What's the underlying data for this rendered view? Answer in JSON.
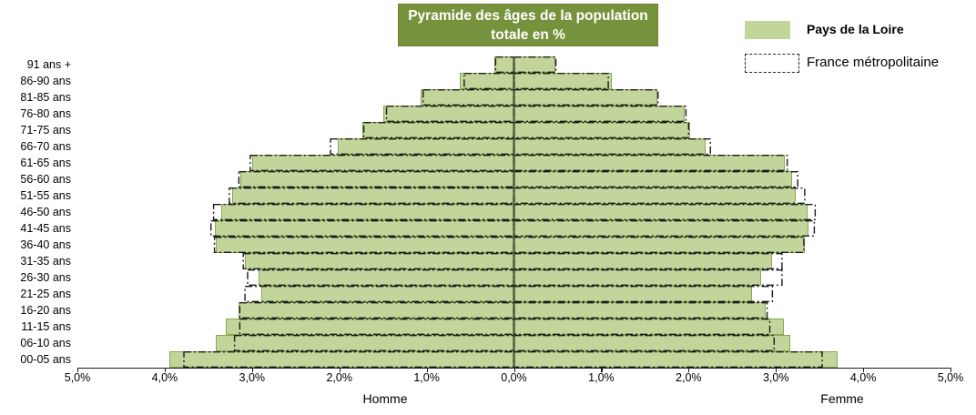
{
  "chart_data": {
    "type": "bar",
    "variant": "population-pyramid",
    "title": "Pyramide des âges de la population totale en %",
    "xlabel_left": "Homme",
    "xlabel_right": "Femme",
    "xlim": [
      -5,
      5
    ],
    "grid": false,
    "legend_position": "top-right",
    "x_tick_labels": [
      "5,0%",
      "4,0%",
      "3,0%",
      "2,0%",
      "1,0%",
      "0,0%",
      "1,0%",
      "2,0%",
      "3,0%",
      "4,0%",
      "5,0%"
    ],
    "x_tick_values": [
      -5,
      -4,
      -3,
      -2,
      -1,
      0,
      1,
      2,
      3,
      4,
      5
    ],
    "categories_top_to_bottom": [
      "91 ans +",
      "86-90 ans",
      "81-85 ans",
      "76-80 ans",
      "71-75 ans",
      "66-70 ans",
      "61-65 ans",
      "56-60 ans",
      "51-55 ans",
      "46-50 ans",
      "41-45 ans",
      "36-40 ans",
      "31-35 ans",
      "26-30 ans",
      "21-25 ans",
      "16-20 ans",
      "11-15 ans",
      "06-10 ans",
      "00-05 ans"
    ],
    "series": [
      {
        "name": "Pays de la Loire",
        "style": "filled",
        "fill": "#C2D69B",
        "border": "#8CA554",
        "homme": [
          0.22,
          0.62,
          1.07,
          1.5,
          1.74,
          2.02,
          3.0,
          3.13,
          3.23,
          3.35,
          3.43,
          3.41,
          3.08,
          2.93,
          2.89,
          3.15,
          3.3,
          3.42,
          3.95
        ],
        "femme": [
          0.47,
          1.12,
          1.64,
          1.95,
          2.02,
          2.19,
          3.1,
          3.19,
          3.23,
          3.36,
          3.37,
          3.33,
          2.96,
          2.83,
          2.73,
          2.88,
          3.09,
          3.16,
          3.71
        ]
      },
      {
        "name": "France métropolitaine",
        "style": "dash-dot-outline",
        "stroke": "#1A1A1A",
        "homme": [
          0.21,
          0.57,
          1.04,
          1.46,
          1.72,
          2.1,
          3.02,
          3.15,
          3.26,
          3.44,
          3.47,
          3.43,
          3.1,
          3.05,
          3.08,
          3.14,
          3.14,
          3.2,
          3.78
        ],
        "femme": [
          0.48,
          1.08,
          1.65,
          1.97,
          2.0,
          2.25,
          3.13,
          3.25,
          3.33,
          3.45,
          3.44,
          3.32,
          3.07,
          3.07,
          2.96,
          2.9,
          2.93,
          2.98,
          3.53
        ]
      }
    ],
    "colors": {
      "title_bg": "#76923C",
      "title_text": "#FFFFFF",
      "axis": "#1A1A1A",
      "center_line": "#4D4D4D"
    }
  }
}
